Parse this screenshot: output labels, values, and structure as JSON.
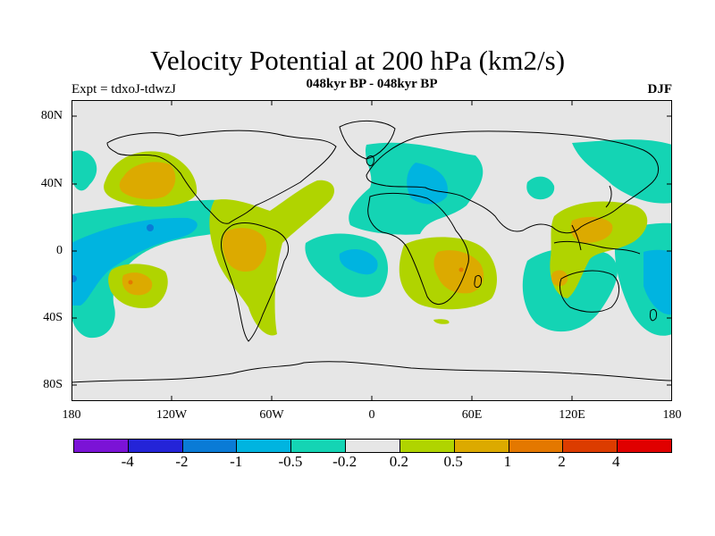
{
  "title": "Velocity Potential at 200 hPa (km2/s)",
  "subtitle": "048kyr BP - 048kyr BP",
  "left_label": "Expt = tdxoJ-tdwzJ",
  "right_label": "DJF",
  "y_ticks": [
    "80N",
    "40N",
    "0",
    "40S",
    "80S"
  ],
  "x_ticks": [
    "180",
    "120W",
    "60W",
    "0",
    "60E",
    "120E",
    "180"
  ],
  "colorbar": {
    "colors": [
      "#7b13d6",
      "#2424d8",
      "#0a7bd6",
      "#00b4e0",
      "#14d4b4",
      "#e6e6e6",
      "#b0d400",
      "#dcaa00",
      "#e47800",
      "#dc3c00",
      "#e00000"
    ],
    "labels": [
      "-4",
      "-2",
      "-1",
      "-0.5",
      "-0.2",
      "0.2",
      "0.5",
      "1",
      "2",
      "4"
    ]
  },
  "map_colors": {
    "background": "#e6e6e6",
    "teal": "#14d4b4",
    "cyan": "#00b4e0",
    "blue": "#0a7bd6",
    "yellowgreen": "#b0d400",
    "orange": "#dcaa00",
    "darkorange": "#e47800"
  }
}
